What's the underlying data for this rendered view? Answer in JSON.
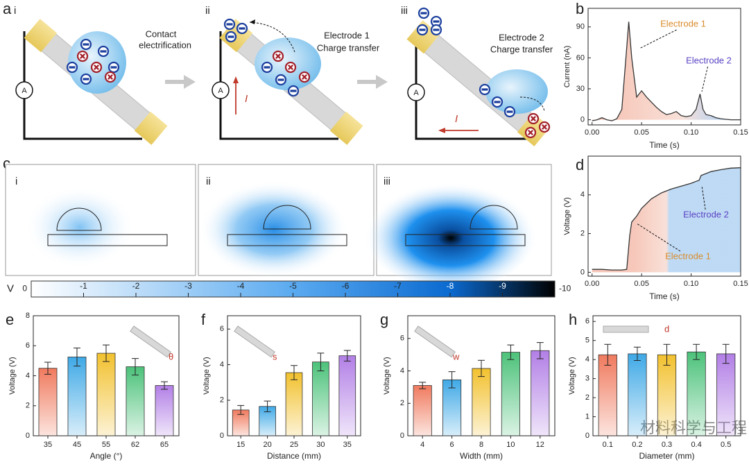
{
  "diagram": {
    "panel_a": {
      "label": "a",
      "subpanels": [
        {
          "label": "i",
          "text": [
            "Contact",
            "electrification"
          ]
        },
        {
          "label": "ii",
          "text": [
            "Electrode 1",
            "Charge transfer"
          ]
        },
        {
          "label": "iii",
          "text": [
            "Electrode 2",
            "Charge transfer"
          ]
        }
      ],
      "ammeter": "A",
      "current": "I"
    },
    "panel_c": {
      "label": "c",
      "subpanels": [
        "i",
        "ii",
        "iii"
      ]
    },
    "watermark": "材料科学与工程"
  },
  "chart_data": [
    {
      "type": "line",
      "panel": "b",
      "x_label": "Time (s)",
      "y_label": "Current (nA)",
      "color": "#333333",
      "x": [
        0,
        0.005,
        0.01,
        0.015,
        0.02,
        0.025,
        0.03,
        0.035,
        0.037,
        0.04,
        0.045,
        0.05,
        0.055,
        0.06,
        0.065,
        0.07,
        0.075,
        0.08,
        0.085,
        0.09,
        0.095,
        0.1,
        0.105,
        0.109,
        0.112,
        0.115,
        0.12,
        0.125,
        0.13,
        0.14,
        0.15
      ],
      "values": [
        -1,
        0,
        2,
        0,
        -1,
        1,
        10,
        70,
        95,
        60,
        22,
        28,
        22,
        17,
        12,
        8,
        5,
        6,
        8,
        4,
        3,
        4,
        10,
        25,
        10,
        5,
        4,
        2,
        1,
        0,
        0
      ],
      "xlim": [
        -0.004,
        0.15
      ],
      "ylim": [
        -5,
        108
      ],
      "xticks": [
        {
          "value": 0,
          "label": "0.00"
        },
        0.05,
        {
          "value": 0.1,
          "label": "0.10"
        },
        0.15
      ],
      "yticks": [
        0,
        30,
        60,
        90
      ],
      "annotations": [
        {
          "text": "Electrode 1",
          "color": "#d98b2b"
        },
        {
          "text": "Electrode 2",
          "color": "#5b43c4"
        }
      ]
    },
    {
      "type": "colorbar",
      "label": "V",
      "xlim": [
        0,
        -10
      ],
      "xticks": [
        0,
        -1,
        -2,
        -3,
        -4,
        -5,
        -6,
        -7,
        -8,
        -9,
        -10
      ]
    },
    {
      "type": "line",
      "panel": "d",
      "x_label": "Time (s)",
      "y_label": "Voltage (V)",
      "color": "#333333",
      "x": [
        0,
        0.01,
        0.02,
        0.03,
        0.035,
        0.038,
        0.04,
        0.045,
        0.05,
        0.06,
        0.07,
        0.08,
        0.09,
        0.1,
        0.105,
        0.108,
        0.11,
        0.12,
        0.13,
        0.14,
        0.15
      ],
      "values": [
        0.15,
        0.15,
        0.12,
        0.12,
        0.15,
        1.9,
        2.6,
        2.9,
        3.3,
        3.8,
        4.1,
        4.3,
        4.45,
        4.6,
        4.7,
        4.75,
        5.0,
        5.2,
        5.3,
        5.38,
        5.4
      ],
      "xlim": [
        -0.004,
        0.15
      ],
      "ylim": [
        -0.2,
        6.0
      ],
      "xticks": [
        {
          "value": 0,
          "label": "0.00"
        },
        0.05,
        {
          "value": 0.1,
          "label": "0.10"
        },
        0.15
      ],
      "yticks": [
        0,
        2,
        4
      ],
      "annotations": [
        {
          "text": "Electrode 1",
          "color": "#d98b2b"
        },
        {
          "text": "Electrode 2",
          "color": "#5b43c4"
        }
      ]
    },
    {
      "type": "bar",
      "panel": "e",
      "x_label": "Angle (°)",
      "y_label": "Voltage (V)",
      "inset_label": "θ",
      "categories": [
        "35",
        "45",
        "55",
        "62",
        "65"
      ],
      "values": [
        4.5,
        5.25,
        5.5,
        4.6,
        3.35
      ],
      "errors": [
        0.4,
        0.6,
        0.55,
        0.55,
        0.25
      ],
      "colors": [
        "#f07a5e",
        "#3fa9e6",
        "#f2c12e",
        "#4cc27a",
        "#b27fe6"
      ],
      "ylim": [
        0,
        8
      ],
      "yticks": [
        0,
        2,
        4,
        6,
        8
      ]
    },
    {
      "type": "bar",
      "panel": "f",
      "x_label": "Distance (mm)",
      "y_label": "Voltage (V)",
      "inset_label": "s",
      "categories": [
        "15",
        "20",
        "25",
        "30",
        "35"
      ],
      "values": [
        1.45,
        1.65,
        3.55,
        4.15,
        4.5
      ],
      "errors": [
        0.25,
        0.3,
        0.4,
        0.5,
        0.3
      ],
      "colors": [
        "#f07a5e",
        "#3fa9e6",
        "#f2c12e",
        "#4cc27a",
        "#b27fe6"
      ],
      "ylim": [
        0,
        6.75
      ],
      "yticks": [
        0,
        2,
        4,
        6
      ]
    },
    {
      "type": "bar",
      "panel": "g",
      "x_label": "Width (mm)",
      "y_label": "Voltage (V)",
      "inset_label": "w",
      "categories": [
        "4",
        "6",
        "8",
        "10",
        "12"
      ],
      "values": [
        3.1,
        3.45,
        4.15,
        5.15,
        5.25
      ],
      "errors": [
        0.2,
        0.5,
        0.5,
        0.45,
        0.5
      ],
      "colors": [
        "#f07a5e",
        "#3fa9e6",
        "#f2c12e",
        "#4cc27a",
        "#b27fe6"
      ],
      "ylim": [
        0,
        7.4
      ],
      "yticks": [
        0,
        2,
        4,
        6
      ]
    },
    {
      "type": "bar",
      "panel": "h",
      "x_label": "Diameter (mm)",
      "y_label": "Voltage (V)",
      "inset_label": "d",
      "categories": [
        "0.1",
        "0.2",
        "0.3",
        "0.4",
        "0.5"
      ],
      "values": [
        4.25,
        4.3,
        4.25,
        4.4,
        4.3
      ],
      "errors": [
        0.55,
        0.35,
        0.55,
        0.4,
        0.5
      ],
      "colors": [
        "#f07a5e",
        "#3fa9e6",
        "#f2c12e",
        "#4cc27a",
        "#b27fe6"
      ],
      "ylim": [
        0,
        6.3
      ],
      "yticks": [
        0,
        1,
        2,
        3,
        4,
        5,
        6
      ]
    }
  ]
}
